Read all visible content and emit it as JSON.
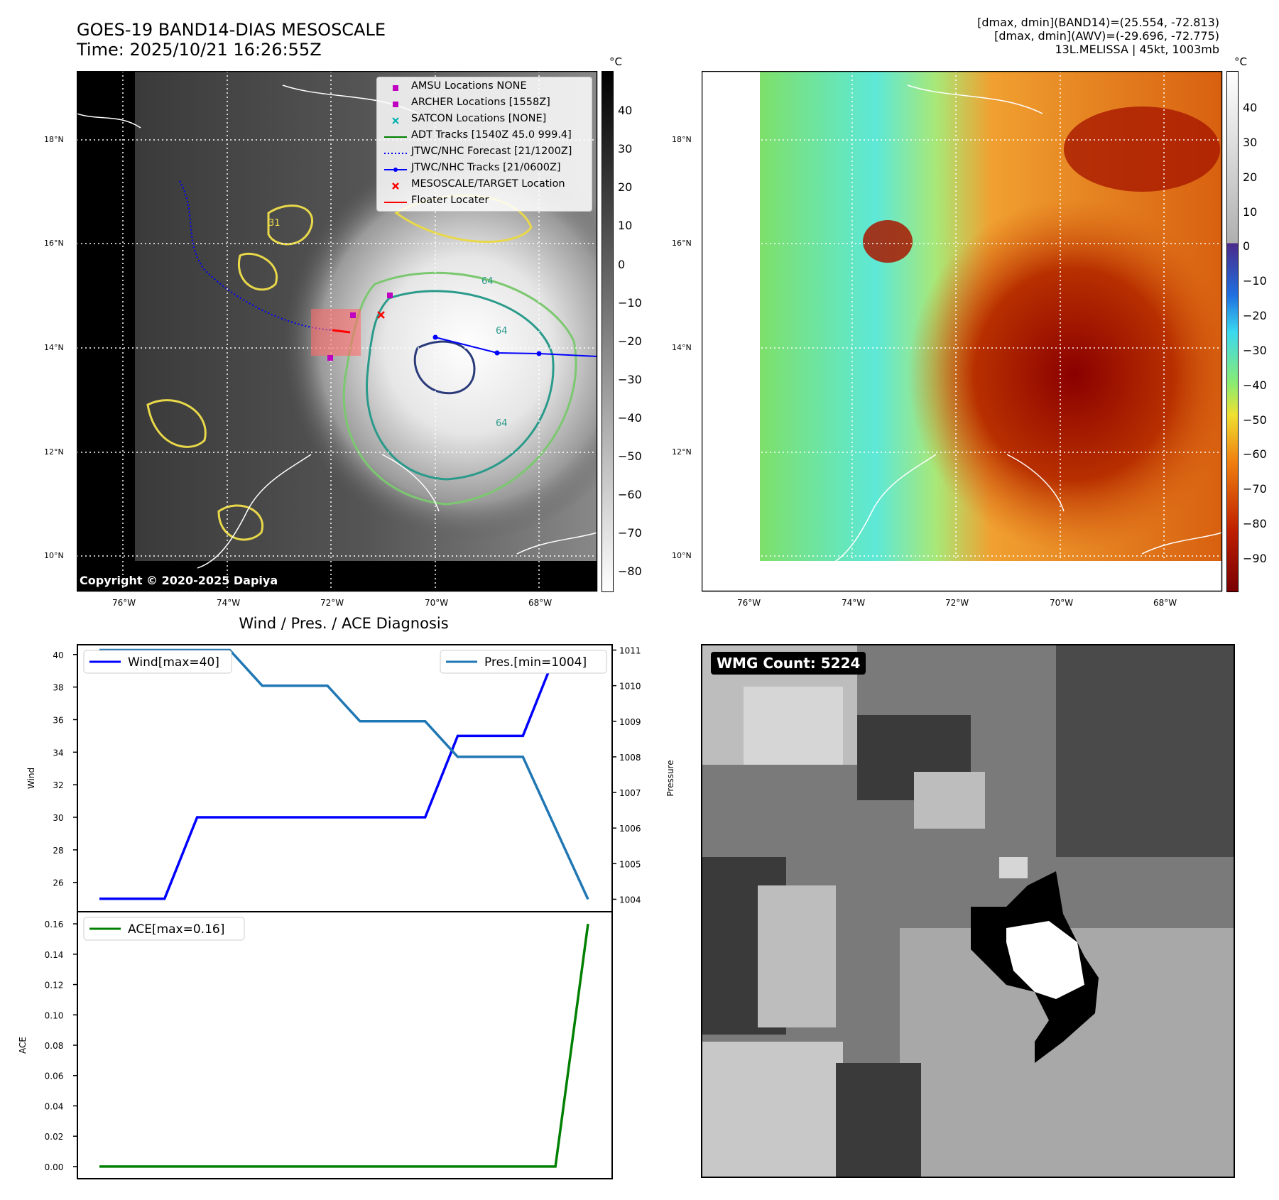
{
  "header": {
    "title_line1": "GOES-19 BAND14-DIAS MESOSCALE",
    "title_line2": "Time: 2025/10/21 16:26:55Z",
    "stats_line1": "[dmax, dmin](BAND14)=(25.554, -72.813)",
    "stats_line2": "[dmax, dmin](AWV)=(-29.696, -72.775)",
    "stats_line3": "13L.MELISSA | 45kt, 1003mb"
  },
  "map_axes": {
    "lon_labels": [
      "76°W",
      "74°W",
      "72°W",
      "70°W",
      "68°W"
    ],
    "lat_labels": [
      "18°N",
      "16°N",
      "14°N",
      "12°N",
      "10°N"
    ]
  },
  "colorbar_ir": {
    "unit": "°C",
    "ticks": [
      "40",
      "30",
      "20",
      "10",
      "0",
      "−10",
      "−20",
      "−30",
      "−40",
      "−50",
      "−60",
      "−70",
      "−80"
    ]
  },
  "colorbar_awv": {
    "unit": "°C",
    "ticks": [
      "40",
      "30",
      "20",
      "10",
      "0",
      "−10",
      "−20",
      "−30",
      "−40",
      "−50",
      "−60",
      "−70",
      "−80",
      "−90"
    ]
  },
  "legend": {
    "items": [
      {
        "label": "AMSU Locations NONE",
        "color": "#c000c0"
      },
      {
        "label": "ARCHER Locations [1558Z]",
        "color": "#c000c0"
      },
      {
        "label": "SATCON Locations [NONE]",
        "color": "#00b0b0"
      },
      {
        "label": "ADT Tracks [1540Z 45.0 999.4]",
        "color": "#008000"
      },
      {
        "label": "JTWC/NHC Forecast [21/1200Z]",
        "color": "#0000ff"
      },
      {
        "label": "JTWC/NHC Tracks [21/0600Z]",
        "color": "#0000ff"
      },
      {
        "label": "MESOSCALE/TARGET Location",
        "color": "#ff0000"
      },
      {
        "label": "Floater Locater",
        "color": "#ff0000"
      }
    ]
  },
  "contour_labels": [
    "31",
    "64",
    "64",
    "64"
  ],
  "copyright": "Copyright © 2020-2025 Dapiya",
  "wmg_label": "WMG Count: 5224",
  "chart_data": [
    {
      "type": "line",
      "title": "Wind / Pres. / ACE Diagnosis",
      "x": [
        0,
        1,
        2,
        3,
        4,
        5,
        6,
        7,
        8,
        9,
        10,
        11,
        12,
        13,
        14,
        15
      ],
      "series": [
        {
          "name": "Wind[max=40]",
          "axis": "left",
          "color": "#0000ff",
          "values": [
            25,
            25,
            25,
            30,
            30,
            30,
            30,
            30,
            30,
            30,
            30,
            35,
            35,
            35,
            40,
            40
          ]
        },
        {
          "name": "Pres.[min=1004]",
          "axis": "right",
          "color": "#1f77b4",
          "values": [
            1011,
            1011,
            1011,
            1011,
            1011,
            1010,
            1010,
            1010,
            1009,
            1009,
            1009,
            1008,
            1008,
            1008,
            1006,
            1004
          ]
        }
      ],
      "ylabel": "Wind",
      "ylabel_right": "Pressure",
      "ylim": [
        24.2,
        40.6
      ],
      "ylim_right": [
        1003.65,
        1011.15
      ],
      "yticks": [
        26,
        28,
        30,
        32,
        34,
        36,
        38,
        40
      ],
      "yticks_right": [
        1004,
        1005,
        1006,
        1007,
        1008,
        1009,
        1010,
        1011
      ]
    },
    {
      "type": "line",
      "x": [
        0,
        1,
        2,
        3,
        4,
        5,
        6,
        7,
        8,
        9,
        10,
        11,
        12,
        13,
        14,
        15
      ],
      "series": [
        {
          "name": "ACE[max=0.16]",
          "color": "#008000",
          "values": [
            0,
            0,
            0,
            0,
            0,
            0,
            0,
            0,
            0,
            0,
            0,
            0,
            0,
            0,
            0,
            0.16
          ]
        }
      ],
      "ylabel": "ACE",
      "ylim": [
        -0.008,
        0.168
      ],
      "yticks": [
        "0.00",
        "0.02",
        "0.04",
        "0.06",
        "0.08",
        "0.10",
        "0.12",
        "0.14",
        "0.16"
      ]
    }
  ]
}
